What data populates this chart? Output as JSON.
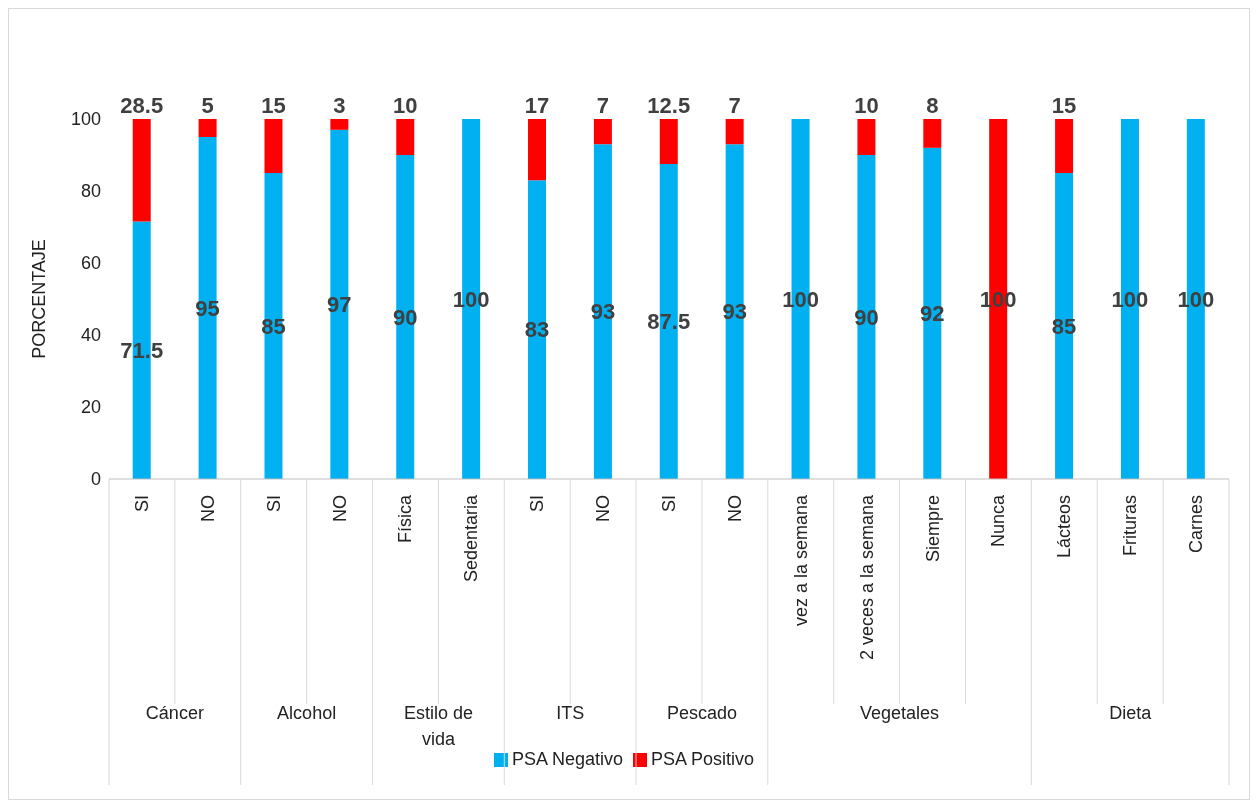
{
  "chart_data": {
    "type": "bar",
    "stacked": true,
    "ylabel": "PORCENTAJE",
    "categories": [
      "SI",
      "NO",
      "SI",
      "NO",
      "Física",
      "Sedentaria",
      "SI",
      "NO",
      "SI",
      "NO",
      "vez a la semana",
      "2 veces a la semana",
      "Siempre",
      "Nunca",
      "Lácteos",
      "Frituras",
      "Carnes"
    ],
    "series": [
      {
        "name": "PSA Negativo",
        "color": "#00b0f0",
        "colors": [
          "#00b0f0",
          "#00b0f0",
          "#00b0f0",
          "#00b0f0",
          "#00b0f0",
          "#00b0f0",
          "#00b0f0",
          "#00b0f0",
          "#00b0f0",
          "#00b0f0",
          "#00b0f0",
          "#00b0f0",
          "#00b0f0",
          "#ff0000",
          "#00b0f0",
          "#00b0f0",
          "#00b0f0"
        ],
        "values": [
          71.5,
          95,
          85,
          97,
          90,
          100,
          83,
          93,
          87.5,
          93,
          100,
          90,
          92,
          100,
          85,
          100,
          100
        ],
        "value_labels": [
          "71.5",
          "95",
          "85",
          "97",
          "90",
          "100",
          "83",
          "93",
          "87.5",
          "93",
          "100",
          "90",
          "92",
          "100",
          "85",
          "100",
          "100"
        ]
      },
      {
        "name": "PSA Positivo",
        "color": "#ff0000",
        "values": [
          28.5,
          5,
          15,
          3,
          10,
          null,
          17,
          7,
          12.5,
          7,
          null,
          10,
          8,
          null,
          15,
          null,
          null
        ],
        "value_labels": [
          "28.5",
          "5",
          "15",
          "3",
          "10",
          null,
          "17",
          "7",
          "12.5",
          "7",
          null,
          "10",
          "8",
          null,
          "15",
          null,
          null
        ]
      }
    ],
    "annotations": [
      "Cáncer",
      "Alcohol",
      "Estilo de vida",
      "ITS",
      "Pescado",
      "Vegetales",
      "Dieta"
    ],
    "ylim": [
      0,
      100
    ],
    "yticks": [
      0,
      20,
      40,
      60,
      80,
      100
    ],
    "grid": false,
    "legend": "bottom"
  }
}
